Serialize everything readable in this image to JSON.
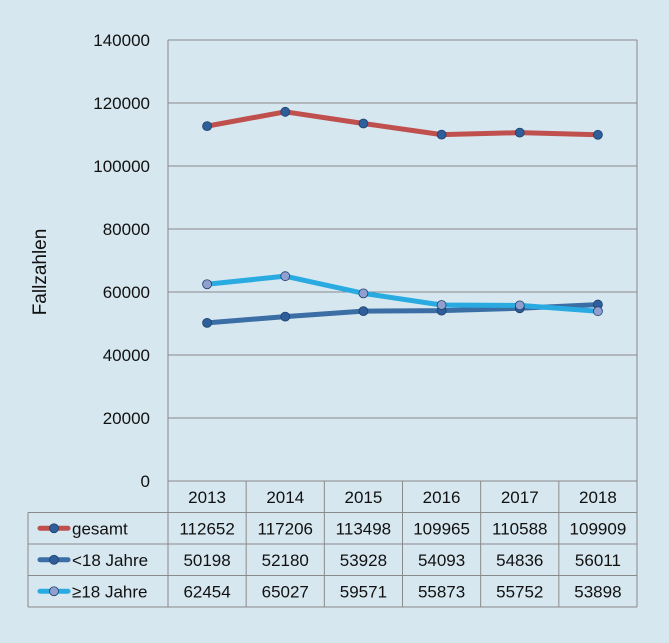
{
  "chart_data": {
    "type": "line",
    "ylabel": "Fallzahlen",
    "ylim": [
      0,
      140000
    ],
    "yticks": [
      0,
      20000,
      40000,
      60000,
      80000,
      100000,
      120000,
      140000
    ],
    "grid": true,
    "legend_placement": "data-table-left",
    "categories": [
      "2013",
      "2014",
      "2015",
      "2016",
      "2017",
      "2018"
    ],
    "series": [
      {
        "name": "gesamt",
        "values": [
          112652,
          117206,
          113498,
          109965,
          110588,
          109909
        ],
        "color": "#c0504d",
        "marker_color": "#2e5f9a"
      },
      {
        "name": "<18 Jahre",
        "values": [
          50198,
          52180,
          53928,
          54093,
          54836,
          56011
        ],
        "color": "#3b6ea5",
        "marker_color": "#2e5f9a"
      },
      {
        "name": "≥18 Jahre",
        "values": [
          62454,
          65027,
          59571,
          55873,
          55752,
          53898
        ],
        "color": "#29abe2",
        "marker_color": "#8e9fd0"
      }
    ]
  },
  "colors": {
    "background": "#d6e7f0",
    "plot_background": "#d6e7f0",
    "grid": "#8a8a8a"
  }
}
